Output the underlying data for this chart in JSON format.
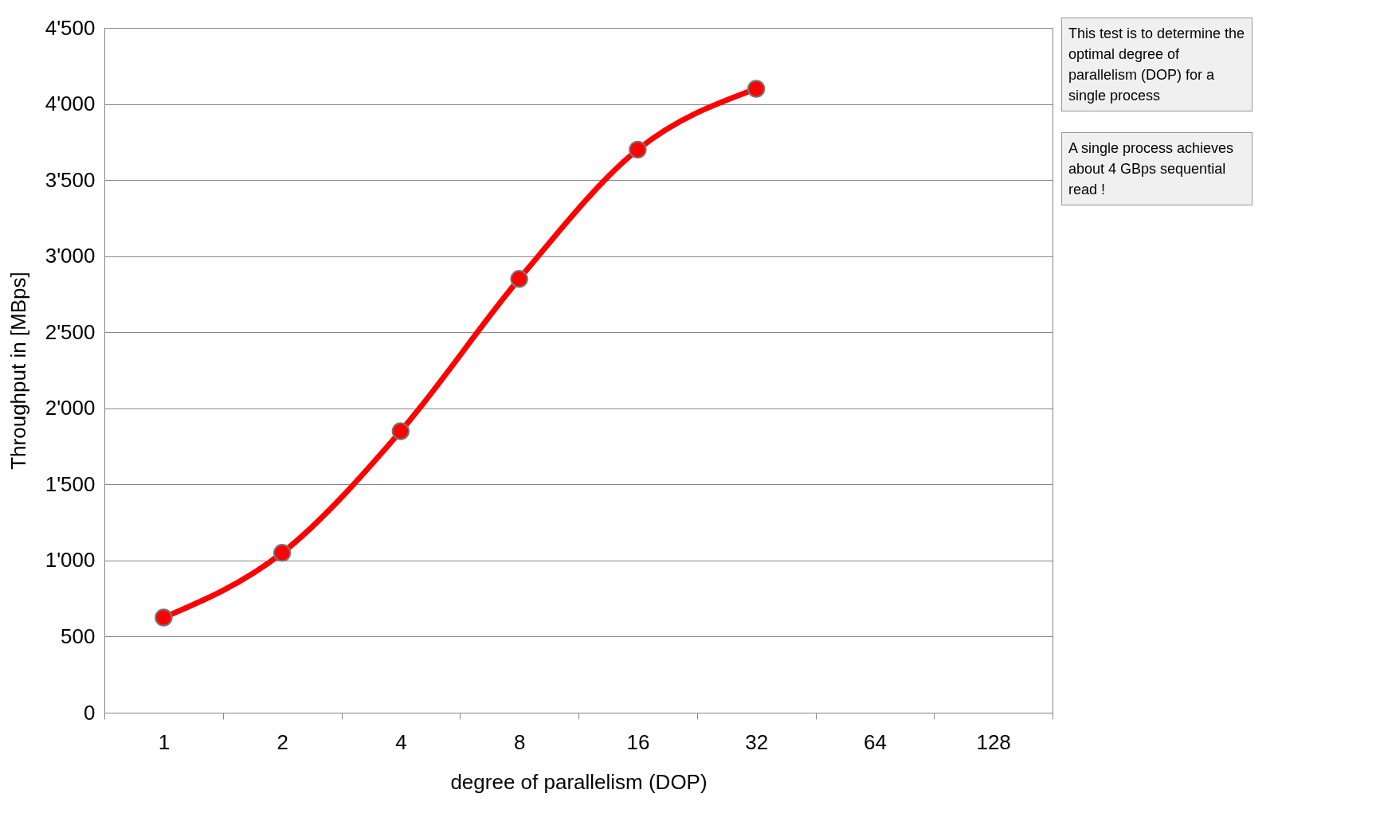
{
  "chart_data": {
    "type": "line",
    "xlabel": "degree of parallelism (DOP)",
    "ylabel": "Throughput in [MBps]",
    "categories": [
      "1",
      "2",
      "4",
      "8",
      "16",
      "32",
      "64",
      "128"
    ],
    "series": [
      {
        "color": "#ff0000",
        "values": [
          625,
          1050,
          1850,
          2850,
          3700,
          4100,
          null,
          null
        ]
      }
    ],
    "ylim": [
      0,
      4500
    ],
    "yticks": [
      0,
      500,
      {
        "value": 1000,
        "label": "1'000"
      },
      {
        "value": 1500,
        "label": "1'500"
      },
      {
        "value": 2000,
        "label": "2'000"
      },
      {
        "value": 2500,
        "label": "2'500"
      },
      {
        "value": 3000,
        "label": "3'000"
      },
      {
        "value": 3500,
        "label": "3'500"
      },
      {
        "value": 4000,
        "label": "4'000"
      },
      {
        "value": 4500,
        "label": "4'500"
      }
    ],
    "grid": "y",
    "marker": "circle",
    "line_style": "solid",
    "annotations": [
      "This test is to determine the optimal degree of parallelism (DOP) for a single process",
      "A single process achieves about 4 GBps sequential read !"
    ]
  }
}
